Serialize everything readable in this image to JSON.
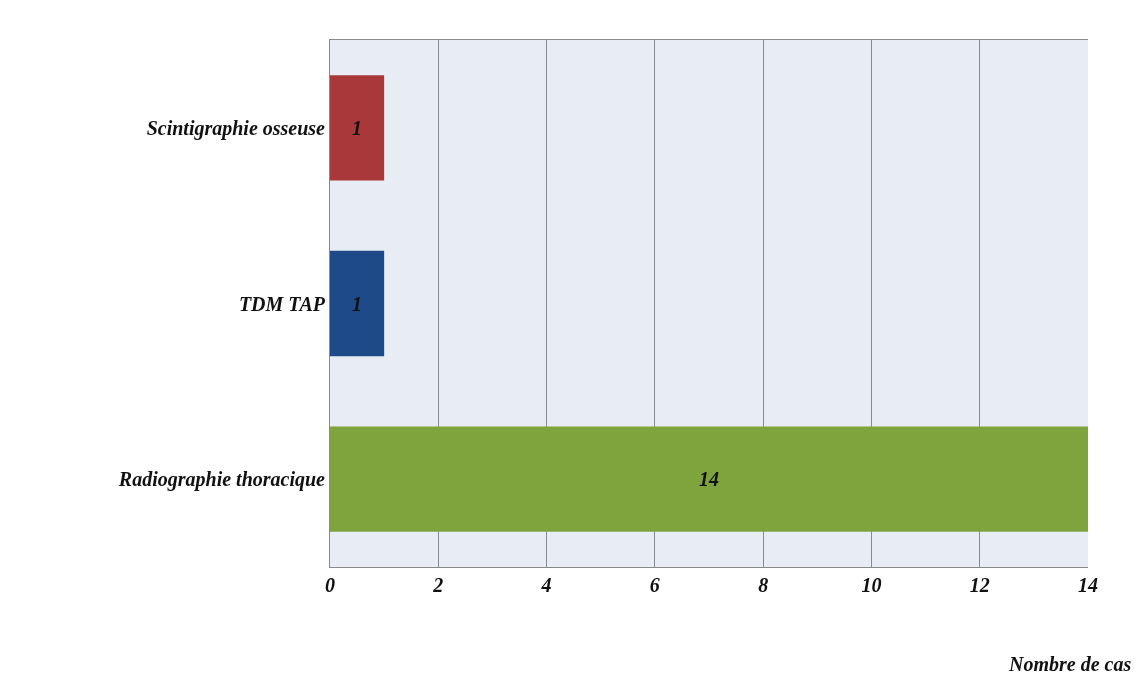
{
  "chart_data": {
    "type": "bar",
    "orientation": "horizontal",
    "categories": [
      "Scintigraphie osseuse",
      "TDM TAP",
      "Radiographie thoracique"
    ],
    "values": [
      1,
      1,
      14
    ],
    "colors": [
      "#a8383a",
      "#1f4a8a",
      "#7fa43e"
    ],
    "xlabel": "Nombre de cas",
    "xlim": [
      0,
      14
    ],
    "xticks": [
      0,
      2,
      4,
      6,
      8,
      10,
      12,
      14
    ],
    "grid": "x",
    "data_labels": true
  }
}
